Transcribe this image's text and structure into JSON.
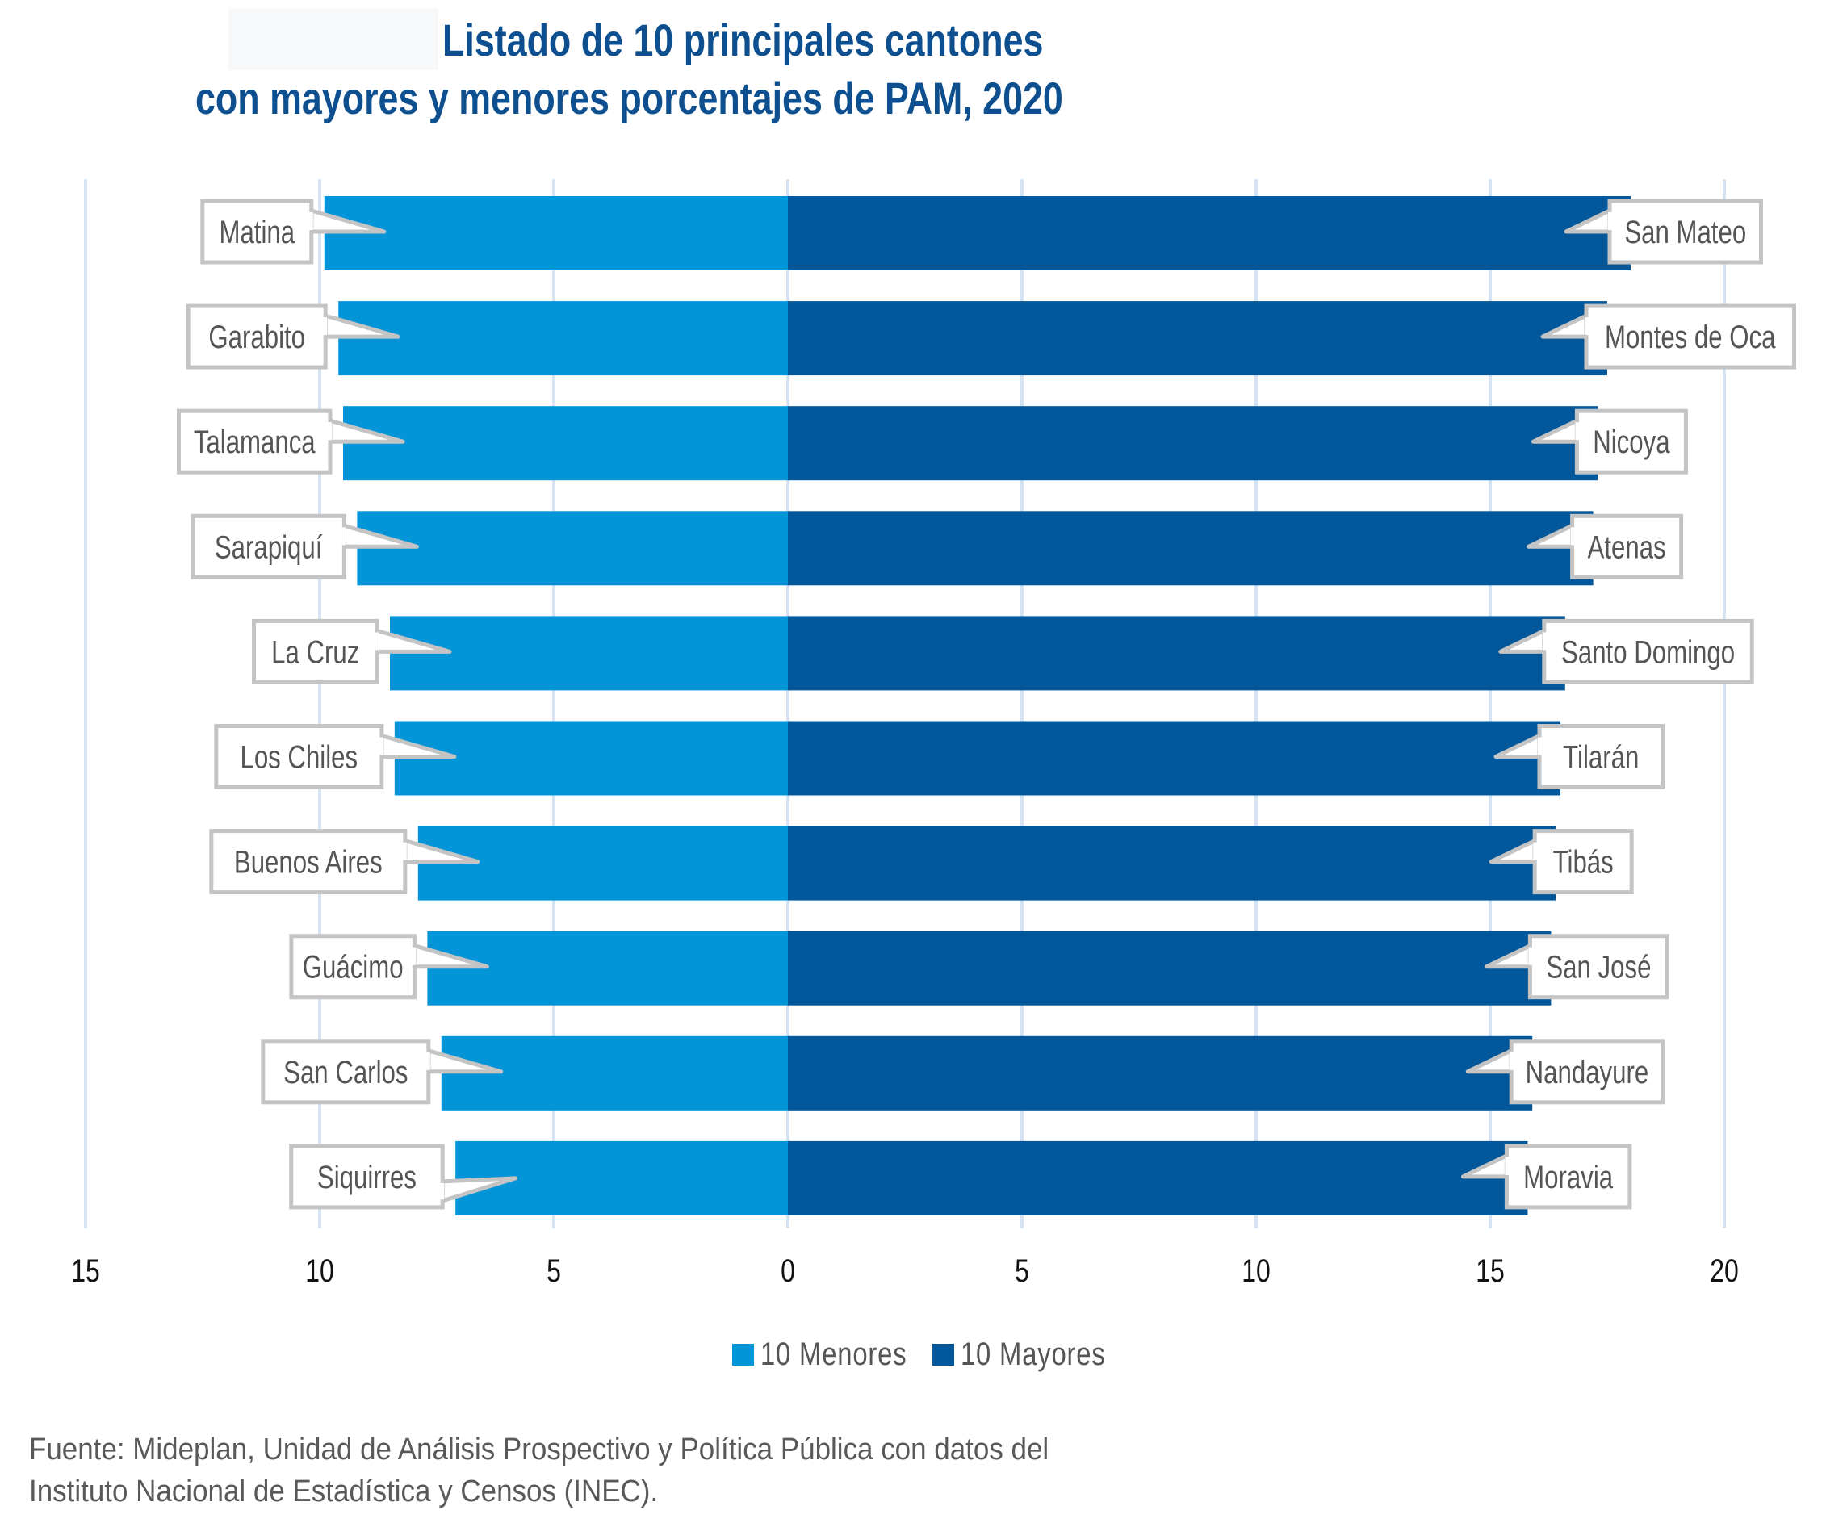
{
  "title": {
    "line1": "Listado de 10 principales cantones",
    "line2": "con mayores y menores porcentajes de PAM, 2020"
  },
  "colors": {
    "menores": "#0494d8",
    "mayores": "#02589b",
    "title": "#0d4f8f",
    "grid": "#d6e3f2",
    "callout_border": "#c4c4c4"
  },
  "chart_data": {
    "type": "bar",
    "orientation": "horizontal-diverging",
    "title": "Listado de 10 principales cantones con mayores y menores porcentajes de PAM, 2020",
    "xlabel": "",
    "ylabel": "",
    "x_ticks": [
      {
        "value": -15,
        "label": "15"
      },
      {
        "value": -10,
        "label": "10"
      },
      {
        "value": -5,
        "label": "5"
      },
      {
        "value": 0,
        "label": "0"
      },
      {
        "value": 5,
        "label": "5"
      },
      {
        "value": 10,
        "label": "10"
      },
      {
        "value": 15,
        "label": "15"
      },
      {
        "value": 20,
        "label": "20"
      }
    ],
    "xlim": [
      -15,
      20
    ],
    "grid": true,
    "legend_position": "bottom-center",
    "series": [
      {
        "name": "10 Menores",
        "side": "left",
        "categories": [
          "Matina",
          "Garabito",
          "Talamanca",
          "Sarapiquí",
          "La Cruz",
          "Los Chiles",
          "Buenos Aires",
          "Guácimo",
          "San Carlos",
          "Siquirres"
        ],
        "values": [
          9.9,
          9.6,
          9.5,
          9.2,
          8.5,
          8.4,
          7.9,
          7.7,
          7.4,
          7.1
        ]
      },
      {
        "name": "10 Mayores",
        "side": "right",
        "categories": [
          "San Mateo",
          "Montes de Oca",
          "Nicoya",
          "Atenas",
          "Santo Domingo",
          "Tilarán",
          "Tibás",
          "San José",
          "Nandayure",
          "Moravia"
        ],
        "values": [
          18.0,
          17.5,
          17.3,
          17.2,
          16.6,
          16.5,
          16.4,
          16.3,
          15.9,
          15.8
        ]
      }
    ]
  },
  "legend": {
    "items": [
      {
        "label": "10 Menores",
        "color": "#0494d8"
      },
      {
        "label": "10 Mayores",
        "color": "#02589b"
      }
    ]
  },
  "source": {
    "line1": "Fuente: Mideplan, Unidad de Análisis Prospectivo y Política Pública con datos del",
    "line2": "Instituto Nacional de Estadística y Censos (INEC)."
  }
}
